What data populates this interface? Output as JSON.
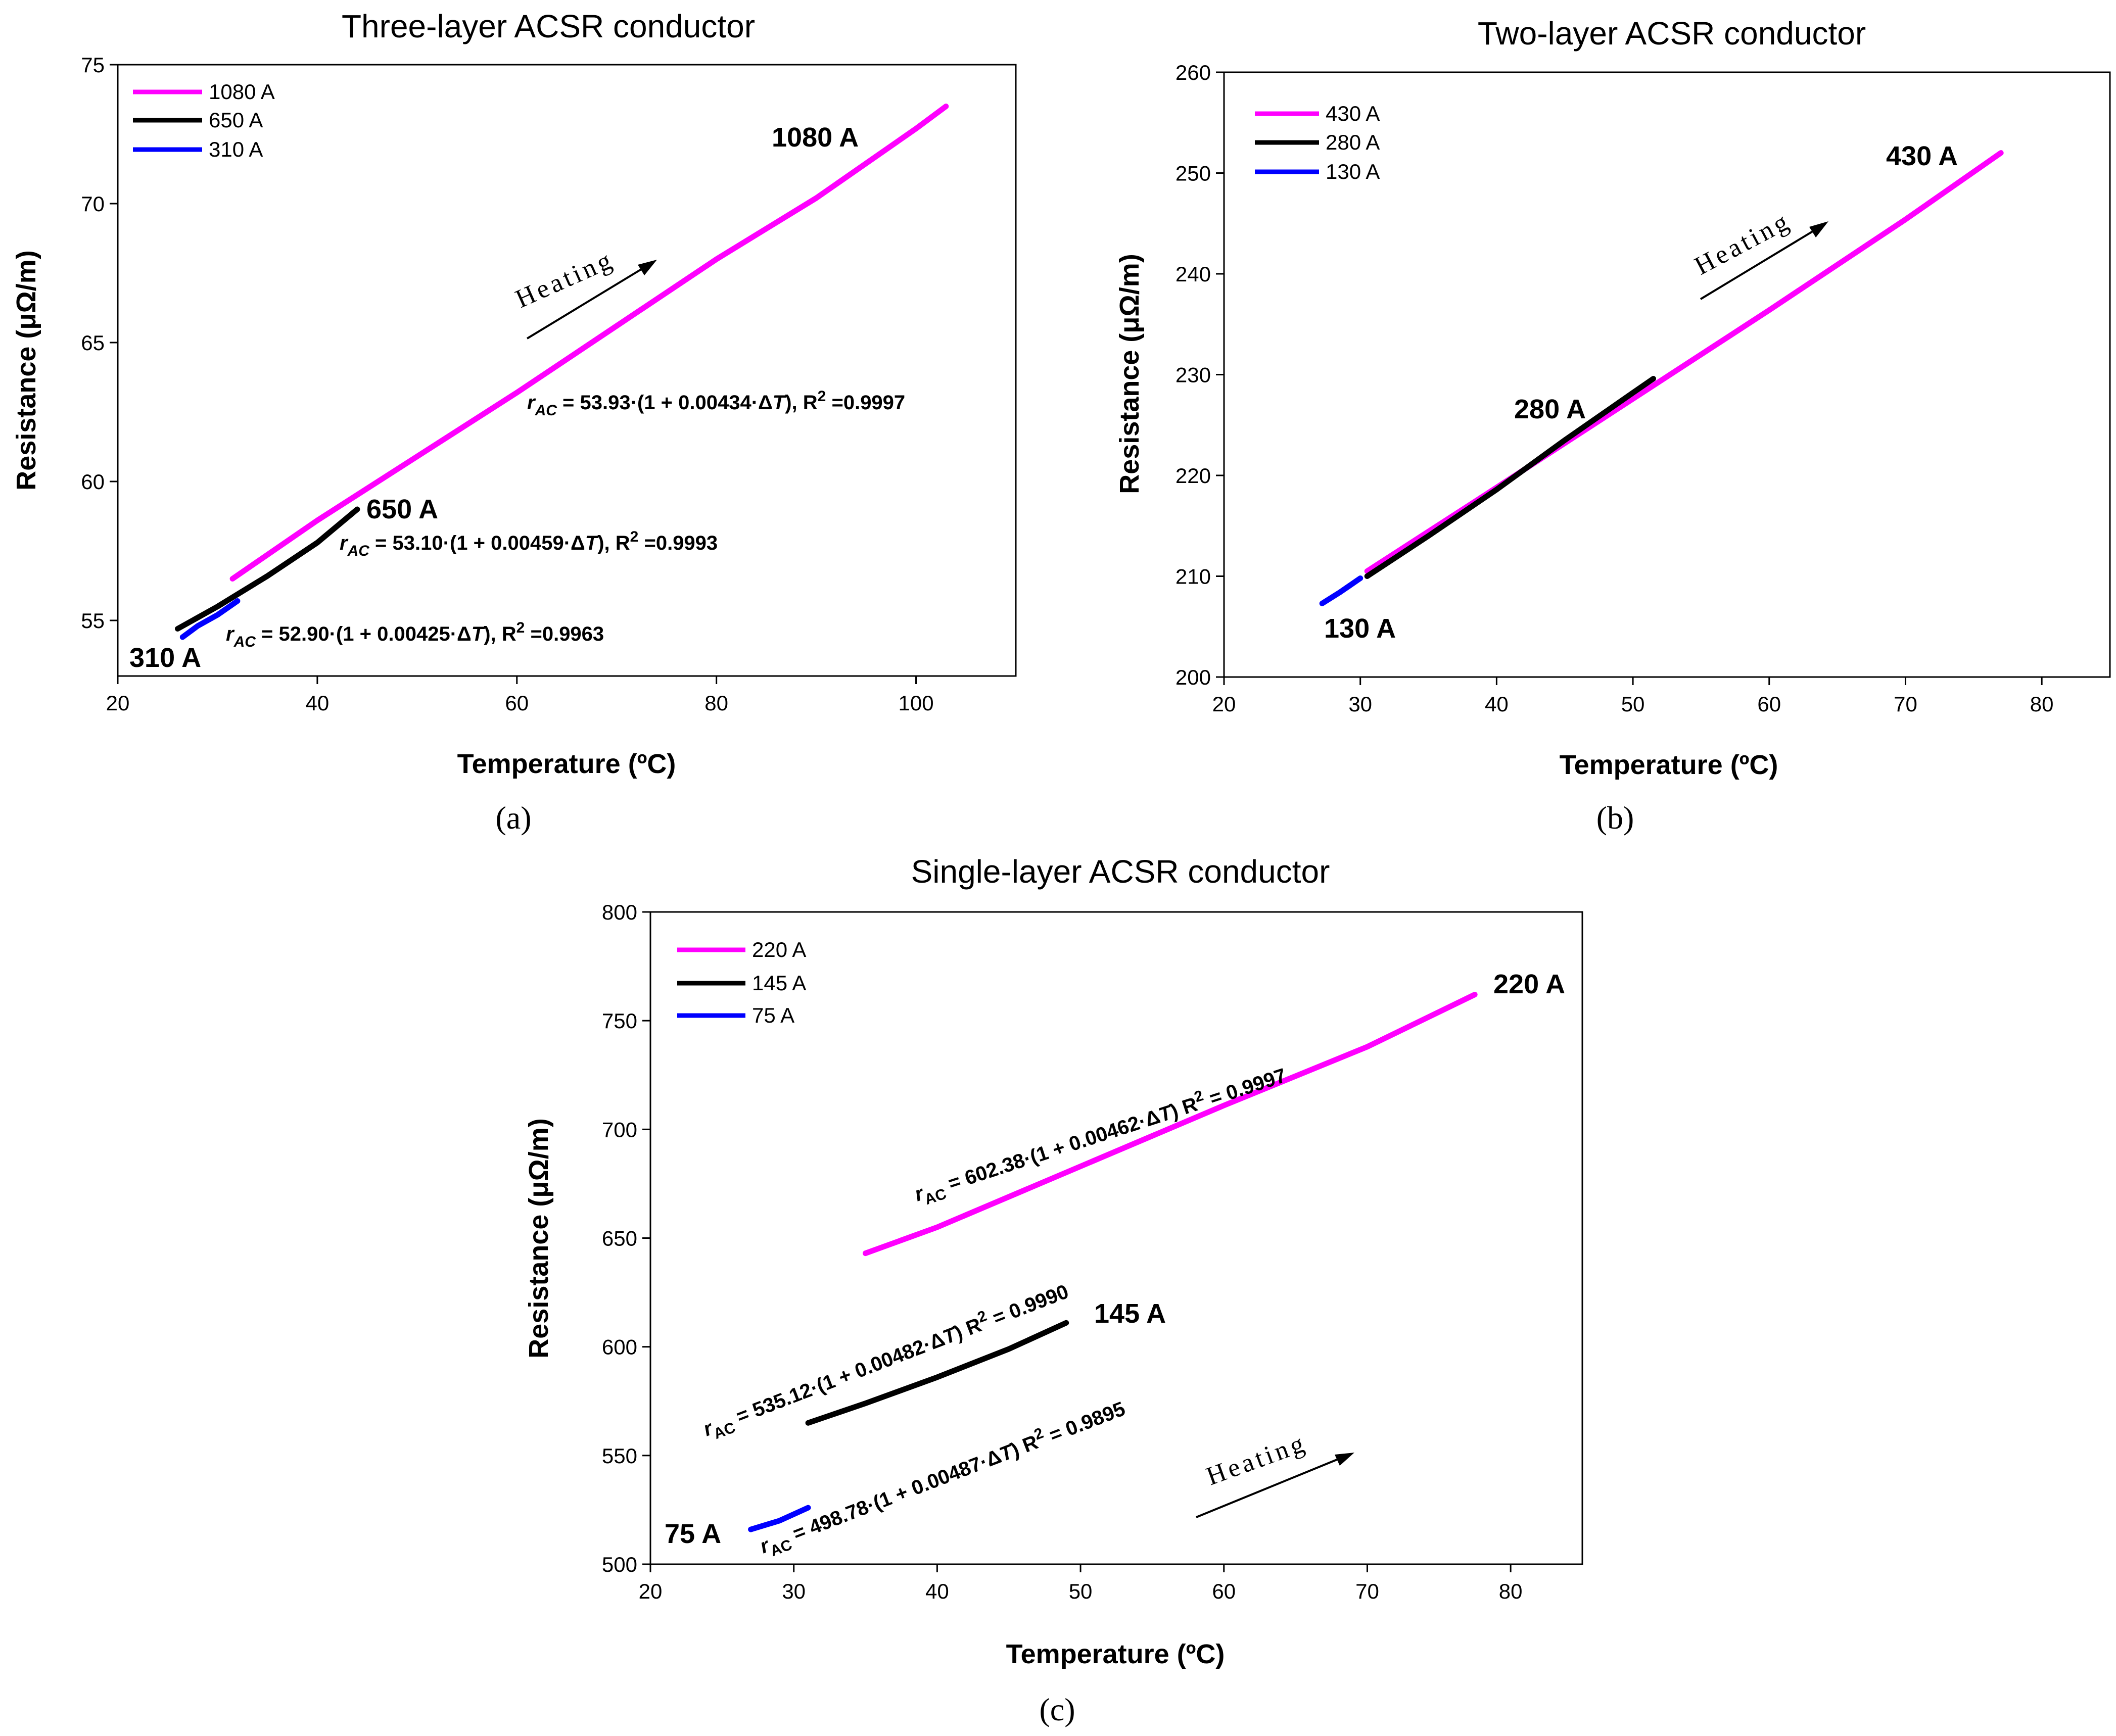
{
  "figure": {
    "captions": [
      "(a)",
      "(b)",
      "(c)"
    ],
    "colors": {
      "magenta": "#ff00ff",
      "black": "#000000",
      "blue": "#0000ff"
    }
  },
  "chart_data": [
    {
      "type": "line",
      "title": "Three-layer ACSR conductor",
      "xlabel": "Temperature (ºC)",
      "ylabel": "Resistance (μΩ/m)",
      "xlim": [
        20,
        110
      ],
      "ylim": [
        53,
        75
      ],
      "xticks": [
        "20",
        "40",
        "60",
        "80",
        "100"
      ],
      "yticks": [
        "55",
        "60",
        "65",
        "70",
        "75"
      ],
      "legend_position": "top-left",
      "series": [
        {
          "name": "1080 A",
          "color": "#ff00ff",
          "x": [
            31.5,
            40,
            50,
            60,
            70,
            80,
            90,
            100,
            103
          ],
          "y": [
            56.5,
            58.6,
            60.9,
            63.2,
            65.6,
            68.0,
            70.2,
            72.7,
            73.5
          ]
        },
        {
          "name": "650 A",
          "color": "#000000",
          "x": [
            26,
            30,
            35,
            40,
            44
          ],
          "y": [
            54.7,
            55.5,
            56.6,
            57.8,
            59.0
          ]
        },
        {
          "name": "310 A",
          "color": "#0000ff",
          "x": [
            26.5,
            28,
            30,
            32
          ],
          "y": [
            54.4,
            54.8,
            55.2,
            55.7
          ]
        }
      ],
      "point_labels": [
        "1080 A",
        "650 A",
        "310 A"
      ],
      "equations": [
        {
          "coef": "53.93",
          "alpha": "0.00434",
          "r2": "0.9997"
        },
        {
          "coef": "53.10",
          "alpha": "0.00459",
          "r2": "0.9993"
        },
        {
          "coef": "52.90",
          "alpha": "0.00425",
          "r2": "0.9963"
        }
      ],
      "heating_label": "Heating"
    },
    {
      "type": "line",
      "title": "Two-layer ACSR conductor",
      "xlabel": "Temperature (ºC)",
      "ylabel": "Resistance (μΩ/m)",
      "xlim": [
        20,
        85
      ],
      "ylim": [
        200,
        260
      ],
      "xticks": [
        "20",
        "30",
        "40",
        "50",
        "60",
        "70",
        "80"
      ],
      "yticks": [
        "200",
        "210",
        "220",
        "230",
        "240",
        "250",
        "260"
      ],
      "legend_position": "top-left",
      "series": [
        {
          "name": "430 A",
          "color": "#ff00ff",
          "x": [
            30.5,
            40,
            50,
            60,
            70,
            77
          ],
          "y": [
            210.5,
            218.8,
            227.6,
            236.4,
            245.4,
            252.0
          ]
        },
        {
          "name": "280 A",
          "color": "#000000",
          "x": [
            30.5,
            35,
            40,
            45,
            50,
            51.5
          ],
          "y": [
            210.0,
            214.0,
            218.6,
            223.5,
            228.2,
            229.6
          ]
        },
        {
          "name": "130 A",
          "color": "#0000ff",
          "x": [
            27.2,
            28.5,
            30
          ],
          "y": [
            207.3,
            208.4,
            209.8
          ]
        }
      ],
      "point_labels": [
        "430 A",
        "280 A",
        "130 A"
      ],
      "heating_label": "Heating"
    },
    {
      "type": "line",
      "title": "Single-layer ACSR conductor",
      "xlabel": "Temperature (ºC)",
      "ylabel": "Resistance (μΩ/m)",
      "xlim": [
        20,
        85
      ],
      "ylim": [
        500,
        800
      ],
      "xticks": [
        "20",
        "30",
        "40",
        "50",
        "60",
        "70",
        "80"
      ],
      "yticks": [
        "500",
        "550",
        "600",
        "650",
        "700",
        "750",
        "800"
      ],
      "legend_position": "top-left",
      "series": [
        {
          "name": "220 A",
          "color": "#ff00ff",
          "x": [
            35,
            40,
            50,
            60,
            70,
            77.5
          ],
          "y": [
            643,
            655,
            683,
            711,
            738,
            762
          ]
        },
        {
          "name": "145 A",
          "color": "#000000",
          "x": [
            31,
            35,
            40,
            45,
            49
          ],
          "y": [
            565,
            574,
            586,
            599,
            611
          ]
        },
        {
          "name": "75 A",
          "color": "#0000ff",
          "x": [
            27,
            29,
            31
          ],
          "y": [
            516,
            520,
            526
          ]
        }
      ],
      "point_labels": [
        "220 A",
        "145 A",
        "75 A"
      ],
      "equations": [
        {
          "coef": "602.38",
          "alpha": "0.00462",
          "r2": "0.9997"
        },
        {
          "coef": "535.12",
          "alpha": "0.00482",
          "r2": "0.9990"
        },
        {
          "coef": "498.78",
          "alpha": "0.00487",
          "r2": "0.9895"
        }
      ],
      "heating_label": "Heating"
    }
  ]
}
